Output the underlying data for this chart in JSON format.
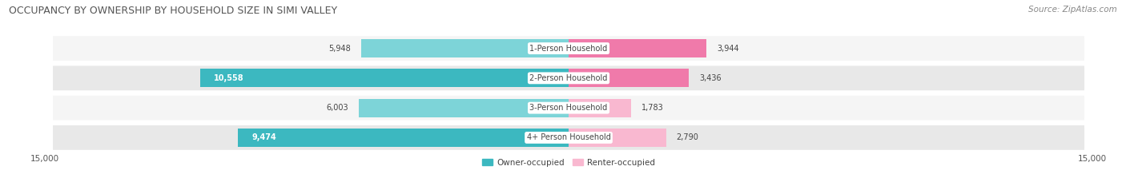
{
  "title": "OCCUPANCY BY OWNERSHIP BY HOUSEHOLD SIZE IN SIMI VALLEY",
  "source": "Source: ZipAtlas.com",
  "categories": [
    "1-Person Household",
    "2-Person Household",
    "3-Person Household",
    "4+ Person Household"
  ],
  "owner_values": [
    5948,
    10558,
    6003,
    9474
  ],
  "renter_values": [
    3944,
    3436,
    1783,
    2790
  ],
  "owner_color_dark": "#3cb8c0",
  "owner_color_light": "#7dd4d8",
  "renter_color_dark": "#f07aaa",
  "renter_color_light": "#f9b8d0",
  "background_color": "#ffffff",
  "row_bg_odd": "#f5f5f5",
  "row_bg_even": "#e8e8e8",
  "axis_max": 15000,
  "title_fontsize": 9,
  "source_fontsize": 7.5,
  "label_fontsize": 7,
  "value_fontsize": 7,
  "tick_fontsize": 7.5,
  "legend_label_owner": "Owner-occupied",
  "legend_label_renter": "Renter-occupied"
}
